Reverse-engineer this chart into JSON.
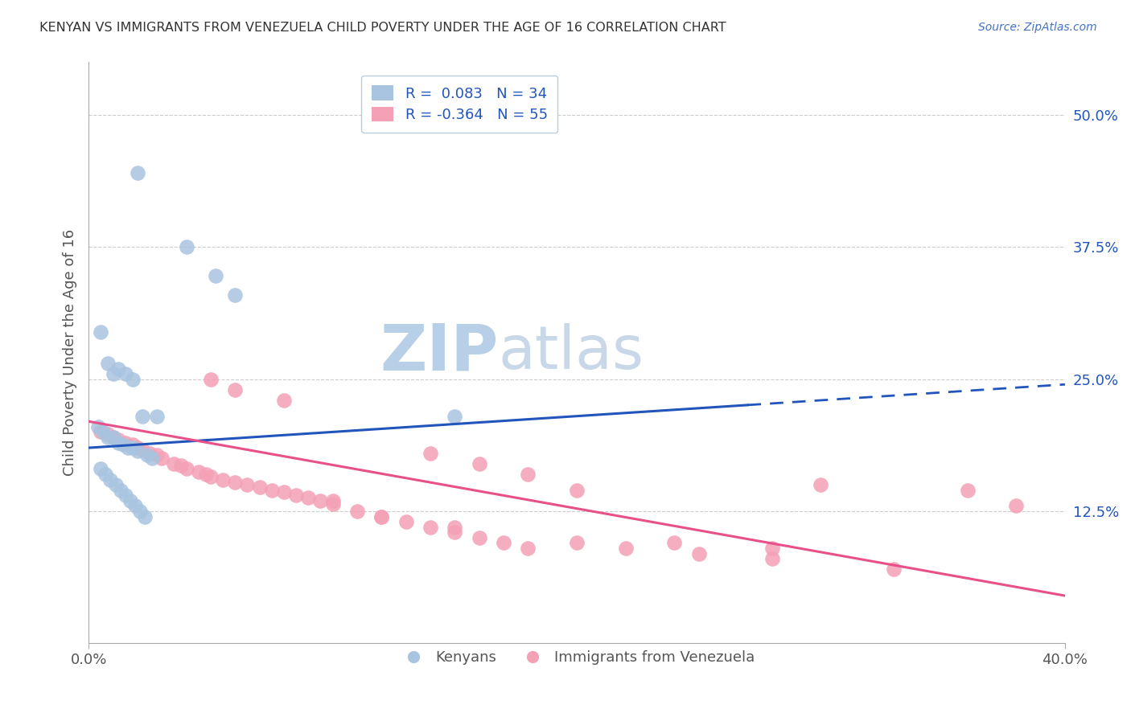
{
  "title": "KENYAN VS IMMIGRANTS FROM VENEZUELA CHILD POVERTY UNDER THE AGE OF 16 CORRELATION CHART",
  "source": "Source: ZipAtlas.com",
  "ylabel": "Child Poverty Under the Age of 16",
  "xlim": [
    0.0,
    0.4
  ],
  "ylim": [
    0.0,
    0.55
  ],
  "kenyan_R": 0.083,
  "kenyan_N": 34,
  "venez_R": -0.364,
  "venez_N": 55,
  "kenyan_color": "#a8c4e0",
  "venez_color": "#f4a0b5",
  "kenyan_line_color": "#2255bb",
  "venez_line_color": "#e8508a",
  "kenyan_line_y0": 0.185,
  "kenyan_line_y1": 0.245,
  "kenyan_line_solid_xend": 0.27,
  "venez_line_y0": 0.21,
  "venez_line_y1": 0.045,
  "watermark_zip_color": "#b8cfe8",
  "watermark_atlas_color": "#c8d8e8",
  "background_color": "#ffffff",
  "kenyan_x": [
    0.02,
    0.04,
    0.052,
    0.06,
    0.005,
    0.008,
    0.012,
    0.01,
    0.015,
    0.018,
    0.022,
    0.028,
    0.004,
    0.006,
    0.008,
    0.01,
    0.012,
    0.014,
    0.016,
    0.018,
    0.02,
    0.024,
    0.026,
    0.005,
    0.007,
    0.009,
    0.011,
    0.013,
    0.015,
    0.017,
    0.019,
    0.021,
    0.15,
    0.023
  ],
  "kenyan_y": [
    0.445,
    0.375,
    0.348,
    0.33,
    0.295,
    0.265,
    0.26,
    0.255,
    0.255,
    0.25,
    0.215,
    0.215,
    0.205,
    0.2,
    0.195,
    0.195,
    0.19,
    0.188,
    0.185,
    0.185,
    0.182,
    0.178,
    0.175,
    0.165,
    0.16,
    0.155,
    0.15,
    0.145,
    0.14,
    0.135,
    0.13,
    0.125,
    0.215,
    0.12
  ],
  "venez_x": [
    0.005,
    0.008,
    0.01,
    0.012,
    0.015,
    0.018,
    0.02,
    0.022,
    0.025,
    0.028,
    0.03,
    0.035,
    0.038,
    0.04,
    0.045,
    0.048,
    0.05,
    0.055,
    0.06,
    0.065,
    0.07,
    0.075,
    0.08,
    0.085,
    0.09,
    0.095,
    0.1,
    0.11,
    0.12,
    0.13,
    0.14,
    0.15,
    0.16,
    0.17,
    0.18,
    0.05,
    0.06,
    0.08,
    0.1,
    0.12,
    0.15,
    0.18,
    0.2,
    0.22,
    0.25,
    0.28,
    0.3,
    0.33,
    0.36,
    0.38,
    0.2,
    0.24,
    0.28,
    0.14,
    0.16
  ],
  "venez_y": [
    0.2,
    0.198,
    0.195,
    0.193,
    0.19,
    0.188,
    0.185,
    0.183,
    0.18,
    0.178,
    0.175,
    0.17,
    0.168,
    0.165,
    0.162,
    0.16,
    0.158,
    0.155,
    0.152,
    0.15,
    0.148,
    0.145,
    0.143,
    0.14,
    0.138,
    0.135,
    0.132,
    0.125,
    0.12,
    0.115,
    0.11,
    0.105,
    0.1,
    0.095,
    0.09,
    0.25,
    0.24,
    0.23,
    0.135,
    0.12,
    0.11,
    0.16,
    0.095,
    0.09,
    0.085,
    0.08,
    0.15,
    0.07,
    0.145,
    0.13,
    0.145,
    0.095,
    0.09,
    0.18,
    0.17
  ]
}
